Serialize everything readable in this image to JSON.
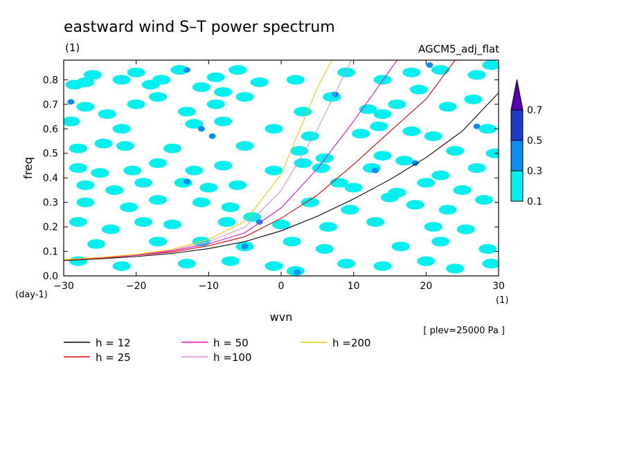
{
  "chart_data": {
    "type": "heatmap",
    "title": "eastward wind S–T power spectrum",
    "subtitle_left": "(1)",
    "subtitle_right": "AGCM5_adj_flat",
    "xlabel": "wvn",
    "ylabel": "freq",
    "x_unit": "(1)",
    "y_unit": "(day-1)",
    "xlim": [
      -30,
      30
    ],
    "ylim": [
      0,
      0.88
    ],
    "xticks": [
      -30,
      -20,
      -10,
      0,
      10,
      20,
      30
    ],
    "yticks": [
      0.0,
      0.1,
      0.2,
      0.3,
      0.4,
      0.5,
      0.6,
      0.7,
      0.8
    ],
    "ytick_labels": [
      "0.0",
      "0.1",
      "0.2",
      "0.3",
      "0.4",
      "0.5",
      "0.6",
      "0.7",
      "0.8"
    ],
    "footnote": "[ plev=25000 Pa ]",
    "colorbar": {
      "levels": [
        0.1,
        0.3,
        0.5,
        0.7
      ],
      "labels": [
        "0.1",
        "0.3",
        "0.5",
        "0.7"
      ],
      "colors": [
        "#00f0f0",
        "#0a8cf0",
        "#1e3cc8",
        "#5a00b4"
      ],
      "extend": "max"
    },
    "series": [
      {
        "name": "h = 12",
        "color": "#000000",
        "x": [
          -30,
          -25,
          -20,
          -15,
          -10,
          -5,
          0,
          5,
          10,
          15,
          20,
          25,
          30
        ],
        "y": [
          0.063,
          0.07,
          0.079,
          0.092,
          0.111,
          0.14,
          0.184,
          0.243,
          0.314,
          0.393,
          0.483,
          0.591,
          0.747
        ]
      },
      {
        "name": "h = 25",
        "color": "#e00000",
        "x": [
          -30,
          -25,
          -20,
          -15,
          -10,
          -5,
          0,
          5,
          10,
          15,
          20,
          24
        ],
        "y": [
          0.065,
          0.072,
          0.084,
          0.098,
          0.123,
          0.16,
          0.235,
          0.33,
          0.455,
          0.589,
          0.721,
          0.88
        ]
      },
      {
        "name": "h = 50",
        "color": "#e010c0",
        "x": [
          -30,
          -25,
          -20,
          -15,
          -10,
          -5,
          0,
          5,
          10,
          16
        ],
        "y": [
          0.066,
          0.074,
          0.085,
          0.102,
          0.131,
          0.176,
          0.277,
          0.437,
          0.631,
          0.88
        ]
      },
      {
        "name": "h =100",
        "color": "#d890d8",
        "x": [
          -30,
          -25,
          -20,
          -15,
          -10,
          -5,
          0,
          5,
          9.7
        ],
        "y": [
          0.066,
          0.075,
          0.087,
          0.105,
          0.14,
          0.199,
          0.348,
          0.597,
          0.88
        ]
      },
      {
        "name": "h =200",
        "color": "#f0c800",
        "x": [
          -30,
          -25,
          -20,
          -15,
          -10,
          -5,
          0,
          5,
          7
        ],
        "y": [
          0.066,
          0.075,
          0.088,
          0.108,
          0.149,
          0.222,
          0.415,
          0.766,
          0.88
        ]
      }
    ],
    "cells": [
      {
        "x": -28.5,
        "y": 0.78,
        "v": 0.2
      },
      {
        "x": -27.0,
        "y": 0.79,
        "v": 0.2
      },
      {
        "x": -26.0,
        "y": 0.82,
        "v": 0.2
      },
      {
        "x": -22.0,
        "y": 0.8,
        "v": 0.2
      },
      {
        "x": -20.0,
        "y": 0.83,
        "v": 0.2
      },
      {
        "x": -18.0,
        "y": 0.78,
        "v": 0.2
      },
      {
        "x": -16.5,
        "y": 0.8,
        "v": 0.2
      },
      {
        "x": -14.0,
        "y": 0.84,
        "v": 0.2
      },
      {
        "x": -13.0,
        "y": 0.84,
        "v": 0.4
      },
      {
        "x": -11.0,
        "y": 0.77,
        "v": 0.2
      },
      {
        "x": -9.0,
        "y": 0.81,
        "v": 0.2
      },
      {
        "x": -8.0,
        "y": 0.75,
        "v": 0.2
      },
      {
        "x": -3.0,
        "y": 0.79,
        "v": 0.2
      },
      {
        "x": -6.0,
        "y": 0.84,
        "v": 0.2
      },
      {
        "x": 2.0,
        "y": 0.8,
        "v": 0.2
      },
      {
        "x": 7.0,
        "y": 0.73,
        "v": 0.2
      },
      {
        "x": 7.5,
        "y": 0.74,
        "v": 0.4
      },
      {
        "x": 9.0,
        "y": 0.83,
        "v": 0.2
      },
      {
        "x": 14.0,
        "y": 0.8,
        "v": 0.2
      },
      {
        "x": 18.0,
        "y": 0.83,
        "v": 0.2
      },
      {
        "x": 20.5,
        "y": 0.86,
        "v": 0.4
      },
      {
        "x": 22.0,
        "y": 0.84,
        "v": 0.2
      },
      {
        "x": 27.0,
        "y": 0.82,
        "v": 0.2
      },
      {
        "x": 29.0,
        "y": 0.86,
        "v": 0.2
      },
      {
        "x": 19.0,
        "y": 0.76,
        "v": 0.2
      },
      {
        "x": 16.0,
        "y": 0.7,
        "v": 0.2
      },
      {
        "x": -29.0,
        "y": 0.71,
        "v": 0.4
      },
      {
        "x": -27.0,
        "y": 0.69,
        "v": 0.2
      },
      {
        "x": -24.0,
        "y": 0.66,
        "v": 0.2
      },
      {
        "x": -20.0,
        "y": 0.7,
        "v": 0.2
      },
      {
        "x": -17.0,
        "y": 0.73,
        "v": 0.2
      },
      {
        "x": -13.0,
        "y": 0.67,
        "v": 0.2
      },
      {
        "x": -9.0,
        "y": 0.7,
        "v": 0.2
      },
      {
        "x": -5.0,
        "y": 0.73,
        "v": 0.2
      },
      {
        "x": 3.0,
        "y": 0.67,
        "v": 0.2
      },
      {
        "x": 12.0,
        "y": 0.68,
        "v": 0.2
      },
      {
        "x": 14.0,
        "y": 0.66,
        "v": 0.2
      },
      {
        "x": 23.0,
        "y": 0.69,
        "v": 0.2
      },
      {
        "x": 26.5,
        "y": 0.72,
        "v": 0.2
      },
      {
        "x": -29.0,
        "y": 0.63,
        "v": 0.2
      },
      {
        "x": -22.0,
        "y": 0.6,
        "v": 0.2
      },
      {
        "x": -12.0,
        "y": 0.62,
        "v": 0.2
      },
      {
        "x": -11.0,
        "y": 0.6,
        "v": 0.4
      },
      {
        "x": -9.5,
        "y": 0.57,
        "v": 0.4
      },
      {
        "x": -8.0,
        "y": 0.63,
        "v": 0.2
      },
      {
        "x": -1.0,
        "y": 0.6,
        "v": 0.2
      },
      {
        "x": 4.0,
        "y": 0.57,
        "v": 0.2
      },
      {
        "x": 11.0,
        "y": 0.58,
        "v": 0.2
      },
      {
        "x": 13.5,
        "y": 0.61,
        "v": 0.2
      },
      {
        "x": 18.0,
        "y": 0.59,
        "v": 0.2
      },
      {
        "x": 21.0,
        "y": 0.57,
        "v": 0.2
      },
      {
        "x": 27.0,
        "y": 0.61,
        "v": 0.4
      },
      {
        "x": 28.5,
        "y": 0.6,
        "v": 0.2
      },
      {
        "x": 29.5,
        "y": 0.5,
        "v": 0.2
      },
      {
        "x": -28.0,
        "y": 0.52,
        "v": 0.2
      },
      {
        "x": -24.5,
        "y": 0.54,
        "v": 0.2
      },
      {
        "x": -21.5,
        "y": 0.53,
        "v": 0.2
      },
      {
        "x": -15.0,
        "y": 0.52,
        "v": 0.2
      },
      {
        "x": -5.0,
        "y": 0.53,
        "v": 0.2
      },
      {
        "x": 2.5,
        "y": 0.51,
        "v": 0.2
      },
      {
        "x": 6.0,
        "y": 0.48,
        "v": 0.2
      },
      {
        "x": 14.0,
        "y": 0.49,
        "v": 0.2
      },
      {
        "x": 17.0,
        "y": 0.47,
        "v": 0.2
      },
      {
        "x": 18.5,
        "y": 0.46,
        "v": 0.4
      },
      {
        "x": 24.0,
        "y": 0.51,
        "v": 0.2
      },
      {
        "x": -28.0,
        "y": 0.44,
        "v": 0.2
      },
      {
        "x": -25.0,
        "y": 0.42,
        "v": 0.2
      },
      {
        "x": -20.5,
        "y": 0.43,
        "v": 0.2
      },
      {
        "x": -17.0,
        "y": 0.46,
        "v": 0.2
      },
      {
        "x": -12.0,
        "y": 0.43,
        "v": 0.2
      },
      {
        "x": -8.0,
        "y": 0.45,
        "v": 0.2
      },
      {
        "x": -1.0,
        "y": 0.43,
        "v": 0.2
      },
      {
        "x": 3.0,
        "y": 0.46,
        "v": 0.2
      },
      {
        "x": 5.5,
        "y": 0.44,
        "v": 0.2
      },
      {
        "x": 12.5,
        "y": 0.44,
        "v": 0.2
      },
      {
        "x": 13.0,
        "y": 0.43,
        "v": 0.4
      },
      {
        "x": 22.0,
        "y": 0.41,
        "v": 0.2
      },
      {
        "x": 27.0,
        "y": 0.44,
        "v": 0.2
      },
      {
        "x": -27.0,
        "y": 0.37,
        "v": 0.2
      },
      {
        "x": -23.0,
        "y": 0.35,
        "v": 0.2
      },
      {
        "x": -19.0,
        "y": 0.38,
        "v": 0.2
      },
      {
        "x": -13.5,
        "y": 0.38,
        "v": 0.2
      },
      {
        "x": -13.0,
        "y": 0.385,
        "v": 0.4
      },
      {
        "x": -10.0,
        "y": 0.36,
        "v": 0.2
      },
      {
        "x": -6.0,
        "y": 0.37,
        "v": 0.2
      },
      {
        "x": 8.0,
        "y": 0.38,
        "v": 0.2
      },
      {
        "x": 10.0,
        "y": 0.36,
        "v": 0.2
      },
      {
        "x": 16.0,
        "y": 0.34,
        "v": 0.2
      },
      {
        "x": 20.0,
        "y": 0.38,
        "v": 0.2
      },
      {
        "x": 25.0,
        "y": 0.35,
        "v": 0.2
      },
      {
        "x": -27.0,
        "y": 0.3,
        "v": 0.2
      },
      {
        "x": -21.0,
        "y": 0.28,
        "v": 0.2
      },
      {
        "x": -17.0,
        "y": 0.31,
        "v": 0.2
      },
      {
        "x": -11.0,
        "y": 0.3,
        "v": 0.2
      },
      {
        "x": -7.0,
        "y": 0.28,
        "v": 0.2
      },
      {
        "x": 4.0,
        "y": 0.3,
        "v": 0.2
      },
      {
        "x": 9.5,
        "y": 0.27,
        "v": 0.2
      },
      {
        "x": 15.0,
        "y": 0.32,
        "v": 0.2
      },
      {
        "x": 18.5,
        "y": 0.29,
        "v": 0.2
      },
      {
        "x": 23.0,
        "y": 0.27,
        "v": 0.2
      },
      {
        "x": 28.0,
        "y": 0.31,
        "v": 0.2
      },
      {
        "x": -28.0,
        "y": 0.22,
        "v": 0.2
      },
      {
        "x": -23.5,
        "y": 0.19,
        "v": 0.2
      },
      {
        "x": -19.0,
        "y": 0.22,
        "v": 0.2
      },
      {
        "x": -15.0,
        "y": 0.21,
        "v": 0.2
      },
      {
        "x": -7.5,
        "y": 0.22,
        "v": 0.2
      },
      {
        "x": -4.0,
        "y": 0.24,
        "v": 0.2
      },
      {
        "x": -3.0,
        "y": 0.22,
        "v": 0.4
      },
      {
        "x": 0.0,
        "y": 0.21,
        "v": 0.2
      },
      {
        "x": 6.5,
        "y": 0.2,
        "v": 0.2
      },
      {
        "x": 13.0,
        "y": 0.22,
        "v": 0.2
      },
      {
        "x": 21.0,
        "y": 0.2,
        "v": 0.2
      },
      {
        "x": 25.5,
        "y": 0.19,
        "v": 0.2
      },
      {
        "x": -25.5,
        "y": 0.13,
        "v": 0.2
      },
      {
        "x": -17.0,
        "y": 0.14,
        "v": 0.2
      },
      {
        "x": -11.0,
        "y": 0.14,
        "v": 0.2
      },
      {
        "x": -5.0,
        "y": 0.12,
        "v": 0.2
      },
      {
        "x": -5.0,
        "y": 0.12,
        "v": 0.4
      },
      {
        "x": 1.5,
        "y": 0.14,
        "v": 0.2
      },
      {
        "x": 6.0,
        "y": 0.11,
        "v": 0.2
      },
      {
        "x": 16.5,
        "y": 0.12,
        "v": 0.2
      },
      {
        "x": 22.0,
        "y": 0.14,
        "v": 0.2
      },
      {
        "x": 28.5,
        "y": 0.11,
        "v": 0.2
      },
      {
        "x": -28.0,
        "y": 0.06,
        "v": 0.2
      },
      {
        "x": -22.0,
        "y": 0.04,
        "v": 0.2
      },
      {
        "x": -13.0,
        "y": 0.05,
        "v": 0.2
      },
      {
        "x": -7.0,
        "y": 0.06,
        "v": 0.2
      },
      {
        "x": -1.0,
        "y": 0.04,
        "v": 0.2
      },
      {
        "x": 2.0,
        "y": 0.02,
        "v": 0.2
      },
      {
        "x": 2.2,
        "y": 0.015,
        "v": 0.4
      },
      {
        "x": 9.0,
        "y": 0.05,
        "v": 0.2
      },
      {
        "x": 14.0,
        "y": 0.04,
        "v": 0.2
      },
      {
        "x": 20.0,
        "y": 0.06,
        "v": 0.2
      },
      {
        "x": 24.0,
        "y": 0.03,
        "v": 0.2
      },
      {
        "x": 29.0,
        "y": 0.05,
        "v": 0.2
      }
    ]
  }
}
